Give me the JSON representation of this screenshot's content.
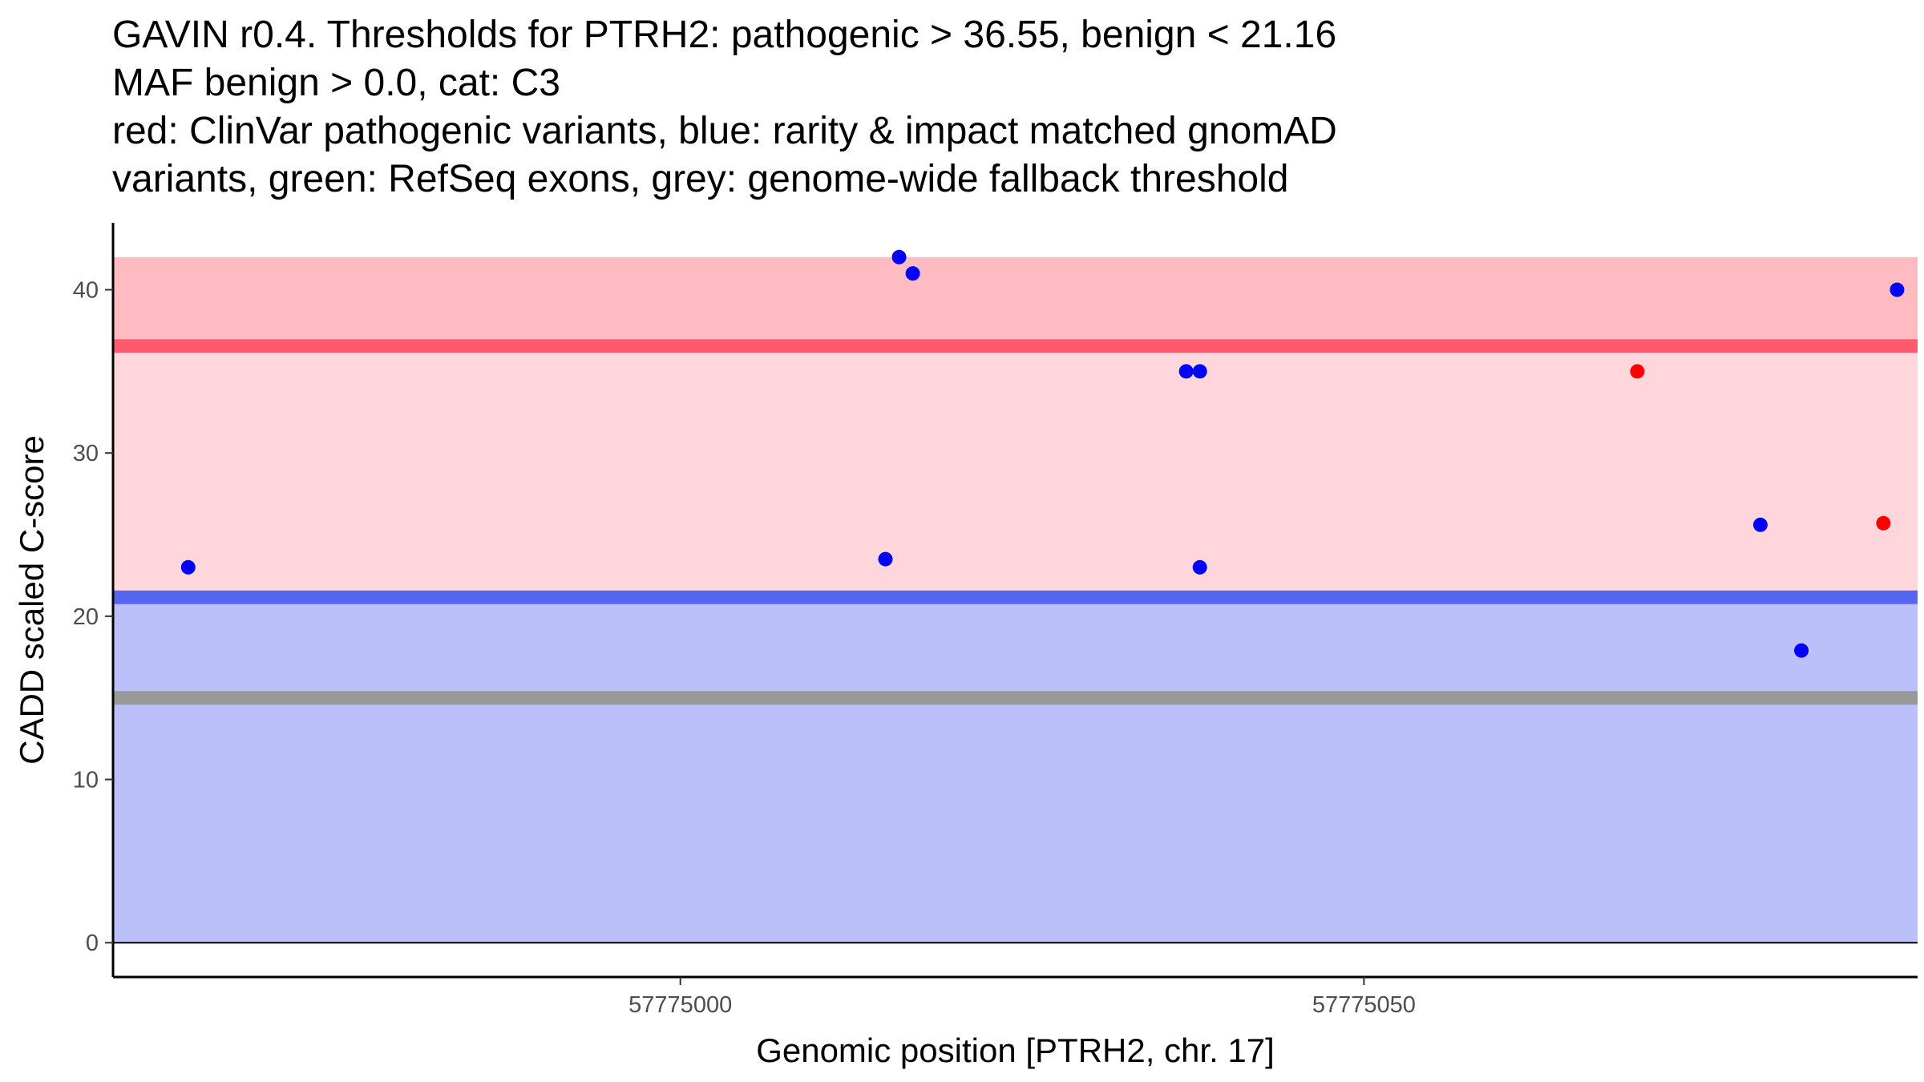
{
  "title_lines": [
    "GAVIN r0.4. Thresholds for PTRH2: pathogenic > 36.55, benign < 21.16",
    "MAF benign > 0.0, cat: C3",
    "red: ClinVar pathogenic variants, blue: rarity & impact matched gnomAD",
    "variants, green: RefSeq exons, grey: genome-wide fallback threshold"
  ],
  "chart_data": {
    "type": "scatter",
    "xlabel": "Genomic position [PTRH2, chr. 17]",
    "ylabel": "CADD scaled C-score",
    "xlim": [
      57774958.5,
      57775090.5
    ],
    "ylim": [
      -2.1,
      44.1
    ],
    "x_ticks": [
      57775000,
      57775050
    ],
    "x_tick_labels": [
      "57775000",
      "57775050"
    ],
    "y_ticks": [
      0,
      10,
      20,
      30,
      40
    ],
    "y_tick_labels": [
      "0",
      "10",
      "20",
      "30",
      "40"
    ],
    "thresholds": {
      "pathogenic": 36.55,
      "benign": 21.16,
      "fallback": 15.0
    },
    "bands": [
      {
        "name": "benign-band",
        "from": 0,
        "to": 21.16,
        "color": "#bbc0fb"
      },
      {
        "name": "pathogenic-band",
        "from": 21.16,
        "to": 36.55,
        "color": "#ffd6db"
      },
      {
        "name": "pathogenic-upper-band",
        "from": 36.55,
        "to": 42,
        "color": "#febcc2"
      }
    ],
    "threshold_lines": [
      {
        "name": "pathogenic-threshold-line",
        "value": 36.55,
        "color": "#fd5b6c"
      },
      {
        "name": "benign-threshold-line",
        "value": 21.16,
        "color": "#5766f2"
      },
      {
        "name": "fallback-threshold-line",
        "value": 15.0,
        "color": "#999999"
      }
    ],
    "series": [
      {
        "name": "gnomAD",
        "color": "#0000ff",
        "points": [
          {
            "x": 57774964,
            "y": 23.0
          },
          {
            "x": 57775015,
            "y": 23.5
          },
          {
            "x": 57775016,
            "y": 42.0
          },
          {
            "x": 57775017,
            "y": 41.0
          },
          {
            "x": 57775037,
            "y": 35.0
          },
          {
            "x": 57775038,
            "y": 35.0
          },
          {
            "x": 57775038,
            "y": 23.0
          },
          {
            "x": 57775079,
            "y": 25.6
          },
          {
            "x": 57775082,
            "y": 17.9
          },
          {
            "x": 57775089,
            "y": 40.0
          }
        ]
      },
      {
        "name": "ClinVar",
        "color": "#ff0000",
        "points": [
          {
            "x": 57775070,
            "y": 35.0
          },
          {
            "x": 57775088,
            "y": 25.7
          }
        ]
      }
    ]
  }
}
